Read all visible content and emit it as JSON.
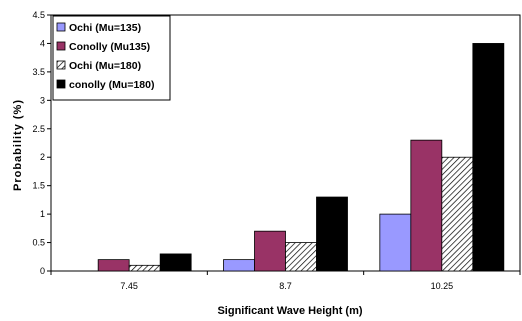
{
  "chart_data": {
    "type": "bar",
    "title": "",
    "xlabel": "Significant Wave Height (m)",
    "ylabel": "Probability (%)",
    "categories": [
      "7.45",
      "8.7",
      "10.25"
    ],
    "ylim": [
      0,
      4.5
    ],
    "yticks": [
      0,
      0.5,
      1,
      1.5,
      2,
      2.5,
      3,
      3.5,
      4,
      4.5
    ],
    "ytick_labels": [
      "0",
      "0.5",
      "1",
      "1.5",
      "2",
      "2.5",
      "3",
      "3.5",
      "4",
      "4.5"
    ],
    "grid": false,
    "legend_position": "top-left",
    "series": [
      {
        "name": "Ochi (Mu=135)",
        "values": [
          0,
          0.2,
          1.0
        ],
        "color": "#9999FF",
        "pattern": "solid"
      },
      {
        "name": "Conolly (Mu135)",
        "values": [
          0.2,
          0.7,
          2.3
        ],
        "color": "#993366",
        "pattern": "solid"
      },
      {
        "name": "Ochi (Mu=180)",
        "values": [
          0.1,
          0.5,
          2.0
        ],
        "color": "#FFFFFF",
        "pattern": "diagonal-hatch"
      },
      {
        "name": "conolly (Mu=180)",
        "values": [
          0.3,
          1.3,
          4.0
        ],
        "color": "#000000",
        "pattern": "solid"
      }
    ]
  }
}
